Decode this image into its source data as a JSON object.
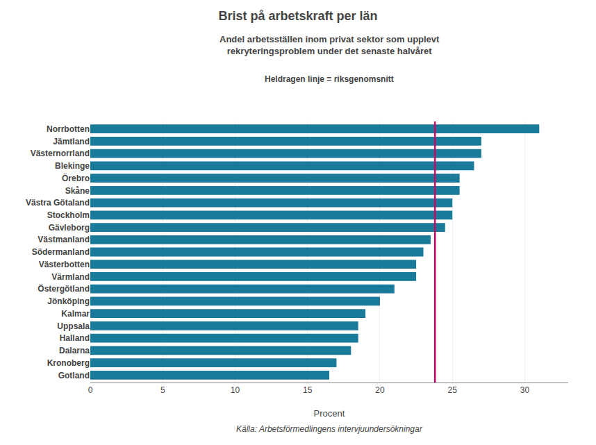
{
  "chart_data": {
    "type": "bar",
    "orientation": "horizontal",
    "title": "Brist på arbetskraft per län",
    "subtitle": "Andel arbetsställen inom privat sektor som upplevt\nrekryteringsproblem under det senaste halvåret",
    "annotations": [
      "Heldragen linje = riksgenomsnitt"
    ],
    "source": "Källa: Arbetsförmedlingens intervjuundersökningar",
    "xlabel": "Procent",
    "categories": [
      "Gotland",
      "Kronoberg",
      "Dalarna",
      "Halland",
      "Uppsala",
      "Kalmar",
      "Jönköping",
      "Östergötland",
      "Värmland",
      "Västerbotten",
      "Södermanland",
      "Västmanland",
      "Gävleborg",
      "Stockholm",
      "Västra Götaland",
      "Skåne",
      "Örebro",
      "Blekinge",
      "Västernorrland",
      "Jämtland",
      "Norrbotten"
    ],
    "values": [
      16.5,
      17.0,
      18.0,
      18.5,
      18.5,
      19.0,
      20.0,
      21.0,
      22.5,
      22.5,
      23.0,
      23.5,
      24.5,
      25.0,
      25.0,
      25.5,
      25.5,
      26.5,
      27.0,
      27.0,
      31.0
    ],
    "color": "#1a7a9a",
    "reference_line": {
      "value": 23.8,
      "color": "#cc0066"
    },
    "xlim": [
      0,
      33
    ],
    "xticks": [
      0,
      5,
      10,
      15,
      20,
      25,
      30
    ],
    "grid": true
  }
}
